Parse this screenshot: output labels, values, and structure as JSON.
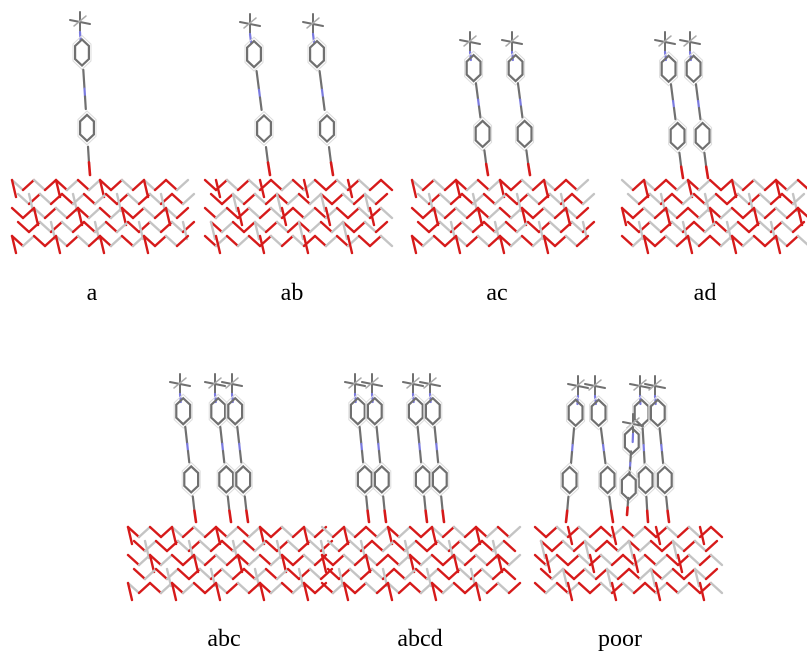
{
  "panels": [
    {
      "label": "a"
    },
    {
      "label": "ab"
    },
    {
      "label": "ac"
    },
    {
      "label": "ad"
    },
    {
      "label": "abc"
    },
    {
      "label": "abcd"
    },
    {
      "label": "poor"
    }
  ]
}
